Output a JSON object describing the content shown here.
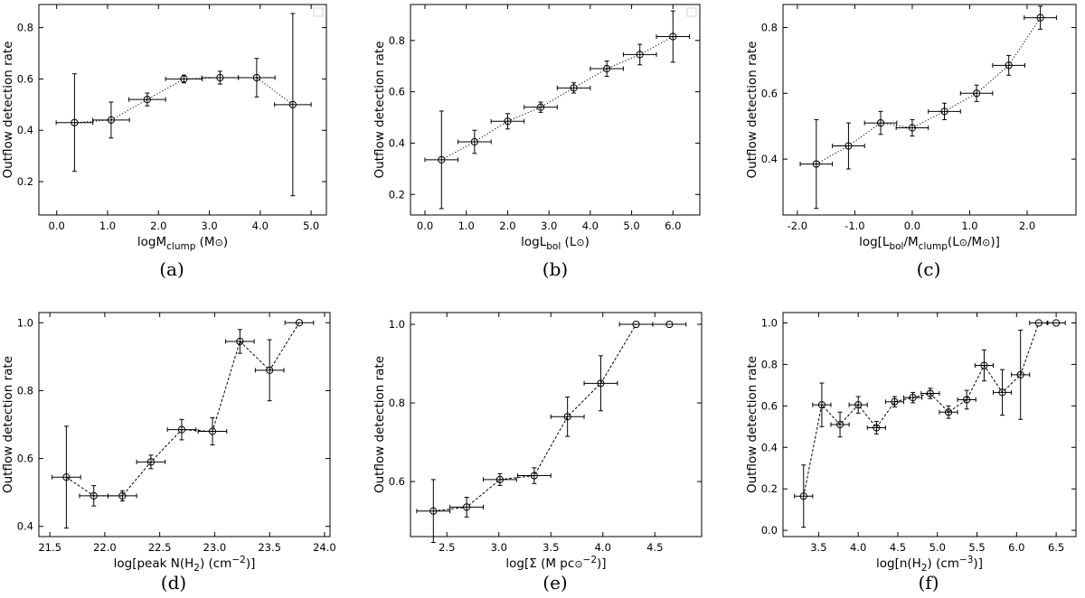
{
  "figure": {
    "ylabel_common": "Outflow detection rate"
  },
  "chart_data": [
    {
      "type": "scatter",
      "panel": "(a)",
      "ylabel": "Outflow detection rate",
      "xlabel": {
        "main": "logM",
        "sub": "clump",
        "rest": " (M",
        "sun": "⊙",
        "close": ")"
      },
      "xlim": [
        -0.35,
        5.3
      ],
      "ylim": [
        0.07,
        0.89
      ],
      "xticks": [
        0.0,
        1.0,
        2.0,
        3.0,
        4.0,
        5.0
      ],
      "xtick_labels": [
        "0.0",
        "1.0",
        "2.0",
        "3.0",
        "4.0",
        "5.0"
      ],
      "yticks": [
        0.2,
        0.4,
        0.6,
        0.8
      ],
      "ytick_labels": [
        "0.2",
        "0.4",
        "0.6",
        "0.8"
      ],
      "line_style": "dotted",
      "x": [
        0.35,
        1.07,
        1.78,
        2.5,
        3.21,
        3.93,
        4.64
      ],
      "y": [
        0.43,
        0.44,
        0.52,
        0.6,
        0.605,
        0.605,
        0.5
      ],
      "xerr": [
        0.36,
        0.36,
        0.36,
        0.36,
        0.36,
        0.36,
        0.36
      ],
      "yerr_low": [
        0.19,
        0.07,
        0.025,
        0.015,
        0.025,
        0.075,
        0.355
      ],
      "yerr_high": [
        0.19,
        0.07,
        0.025,
        0.015,
        0.025,
        0.075,
        0.355
      ]
    },
    {
      "type": "scatter",
      "panel": "(b)",
      "ylabel": "Outflow detection rate",
      "xlabel": {
        "main": "logL",
        "sub": "bol",
        "rest": " (L",
        "sun": "⊙",
        "close": ")"
      },
      "xlim": [
        -0.35,
        6.65
      ],
      "ylim": [
        0.12,
        0.94
      ],
      "xticks": [
        0.0,
        1.0,
        2.0,
        3.0,
        4.0,
        5.0,
        6.0
      ],
      "xtick_labels": [
        "0.0",
        "1.0",
        "2.0",
        "3.0",
        "4.0",
        "5.0",
        "6.0"
      ],
      "yticks": [
        0.2,
        0.4,
        0.6,
        0.8
      ],
      "ytick_labels": [
        "0.2",
        "0.4",
        "0.6",
        "0.8"
      ],
      "line_style": "dotted",
      "x": [
        0.4,
        1.2,
        2.0,
        2.8,
        3.6,
        4.4,
        5.2,
        6.0
      ],
      "y": [
        0.335,
        0.405,
        0.485,
        0.54,
        0.615,
        0.69,
        0.745,
        0.815
      ],
      "xerr": [
        0.4,
        0.4,
        0.4,
        0.4,
        0.4,
        0.4,
        0.4,
        0.4
      ],
      "yerr_low": [
        0.19,
        0.045,
        0.03,
        0.02,
        0.02,
        0.03,
        0.04,
        0.1
      ],
      "yerr_high": [
        0.19,
        0.045,
        0.03,
        0.02,
        0.02,
        0.03,
        0.04,
        0.1
      ]
    },
    {
      "type": "scatter",
      "panel": "(c)",
      "ylabel": "Outflow detection rate",
      "xlabel": {
        "main": "log[L",
        "sub": "bol",
        "mid": "/M",
        "sub2": "clump",
        "rest": "(L",
        "sun": "⊙",
        "slash": "/M",
        "sun2": "⊙",
        "close": ")]"
      },
      "xlim": [
        -2.25,
        2.85
      ],
      "ylim": [
        0.23,
        0.87
      ],
      "xticks": [
        -2.0,
        -1.0,
        0.0,
        1.0,
        2.0
      ],
      "xtick_labels": [
        "-2.0",
        "-1.0",
        "0.0",
        "1.0",
        "2.0"
      ],
      "yticks": [
        0.4,
        0.6,
        0.8
      ],
      "ytick_labels": [
        "0.4",
        "0.6",
        "0.8"
      ],
      "line_style": "dotted",
      "x": [
        -1.67,
        -1.11,
        -0.55,
        0.0,
        0.56,
        1.12,
        1.68,
        2.23
      ],
      "y": [
        0.385,
        0.44,
        0.51,
        0.495,
        0.545,
        0.6,
        0.685,
        0.83
      ],
      "xerr": [
        0.28,
        0.28,
        0.28,
        0.28,
        0.28,
        0.28,
        0.28,
        0.28
      ],
      "yerr_low": [
        0.135,
        0.07,
        0.035,
        0.025,
        0.025,
        0.025,
        0.03,
        0.035
      ],
      "yerr_high": [
        0.135,
        0.07,
        0.035,
        0.025,
        0.025,
        0.025,
        0.03,
        0.035
      ]
    },
    {
      "type": "scatter",
      "panel": "(d)",
      "ylabel": "Outflow detection rate",
      "xlabel": {
        "main": "log[peak N(H",
        "sub": "2",
        "rest": ") (cm",
        "sup": "−2",
        "close": ")]"
      },
      "xlim": [
        21.4,
        24.05
      ],
      "ylim": [
        0.37,
        1.03
      ],
      "xticks": [
        21.5,
        22.0,
        22.5,
        23.0,
        23.5,
        24.0
      ],
      "xtick_labels": [
        "21.5",
        "22.0",
        "22.5",
        "23.0",
        "23.5",
        "24.0"
      ],
      "yticks": [
        0.4,
        0.6,
        0.8,
        1.0
      ],
      "ytick_labels": [
        "0.4",
        "0.6",
        "0.8",
        "1.0"
      ],
      "line_style": "dashed",
      "x": [
        21.65,
        21.9,
        22.16,
        22.42,
        22.7,
        22.98,
        23.23,
        23.5,
        23.77
      ],
      "y": [
        0.545,
        0.49,
        0.49,
        0.59,
        0.685,
        0.68,
        0.945,
        0.86,
        1.0
      ],
      "xerr": [
        0.13,
        0.13,
        0.13,
        0.13,
        0.13,
        0.13,
        0.13,
        0.13,
        0.13
      ],
      "yerr_low": [
        0.15,
        0.03,
        0.015,
        0.02,
        0.03,
        0.04,
        0.035,
        0.09,
        0.0
      ],
      "yerr_high": [
        0.15,
        0.03,
        0.015,
        0.02,
        0.03,
        0.04,
        0.035,
        0.09,
        0.0
      ]
    },
    {
      "type": "scatter",
      "panel": "(e)",
      "ylabel": "Outflow detection rate",
      "xlabel": {
        "main": "log[Σ (M",
        "sun": "⊙",
        "rest": " pc",
        "sup": "−2",
        "close": ")]"
      },
      "xlim": [
        2.15,
        4.95
      ],
      "ylim": [
        0.46,
        1.03
      ],
      "xticks": [
        2.5,
        3.0,
        3.5,
        4.0,
        4.5
      ],
      "xtick_labels": [
        "2.5",
        "3.0",
        "3.5",
        "4.0",
        "4.5"
      ],
      "yticks": [
        0.6,
        0.8,
        1.0
      ],
      "ytick_labels": [
        "0.6",
        "0.8",
        "1.0"
      ],
      "line_style": "dashed",
      "x": [
        2.37,
        2.69,
        3.01,
        3.34,
        3.66,
        3.98,
        4.32,
        4.64
      ],
      "y": [
        0.525,
        0.535,
        0.605,
        0.615,
        0.765,
        0.85,
        1.0,
        1.0
      ],
      "xerr": [
        0.16,
        0.16,
        0.16,
        0.16,
        0.16,
        0.16,
        0.16,
        0.16
      ],
      "yerr_low": [
        0.08,
        0.025,
        0.015,
        0.02,
        0.05,
        0.07,
        0.0,
        0.0
      ],
      "yerr_high": [
        0.08,
        0.025,
        0.015,
        0.02,
        0.05,
        0.07,
        0.0,
        0.0
      ]
    },
    {
      "type": "scatter",
      "panel": "(f)",
      "ylabel": "Outflow detection rate",
      "xlabel": {
        "main": "log[n(H",
        "sub": "2",
        "rest": ") (cm",
        "sup": "−3",
        "close": ")]"
      },
      "xlim": [
        3.05,
        6.75
      ],
      "ylim": [
        -0.03,
        1.05
      ],
      "xticks": [
        3.5,
        4.0,
        4.5,
        5.0,
        5.5,
        6.0,
        6.5
      ],
      "xtick_labels": [
        "3.5",
        "4.0",
        "4.5",
        "5.0",
        "5.5",
        "6.0",
        "6.5"
      ],
      "yticks": [
        0.0,
        0.2,
        0.4,
        0.6,
        0.8,
        1.0
      ],
      "ytick_labels": [
        "0.0",
        "0.2",
        "0.4",
        "0.6",
        "0.8",
        "1.0"
      ],
      "line_style": "dashed",
      "x": [
        3.31,
        3.54,
        3.77,
        4.0,
        4.23,
        4.46,
        4.69,
        4.91,
        5.14,
        5.37,
        5.59,
        5.82,
        6.05,
        6.28,
        6.5
      ],
      "y": [
        0.165,
        0.605,
        0.51,
        0.605,
        0.495,
        0.62,
        0.64,
        0.66,
        0.57,
        0.63,
        0.795,
        0.665,
        0.75,
        1.0,
        1.0
      ],
      "xerr": [
        0.115,
        0.115,
        0.115,
        0.115,
        0.115,
        0.115,
        0.115,
        0.115,
        0.115,
        0.115,
        0.115,
        0.115,
        0.115,
        0.115,
        0.115
      ],
      "yerr_low": [
        0.15,
        0.105,
        0.06,
        0.04,
        0.03,
        0.025,
        0.025,
        0.025,
        0.03,
        0.045,
        0.075,
        0.11,
        0.215,
        0.0,
        0.0
      ],
      "yerr_high": [
        0.15,
        0.105,
        0.06,
        0.04,
        0.03,
        0.025,
        0.025,
        0.025,
        0.03,
        0.045,
        0.075,
        0.11,
        0.215,
        0.0,
        0.0
      ]
    }
  ]
}
